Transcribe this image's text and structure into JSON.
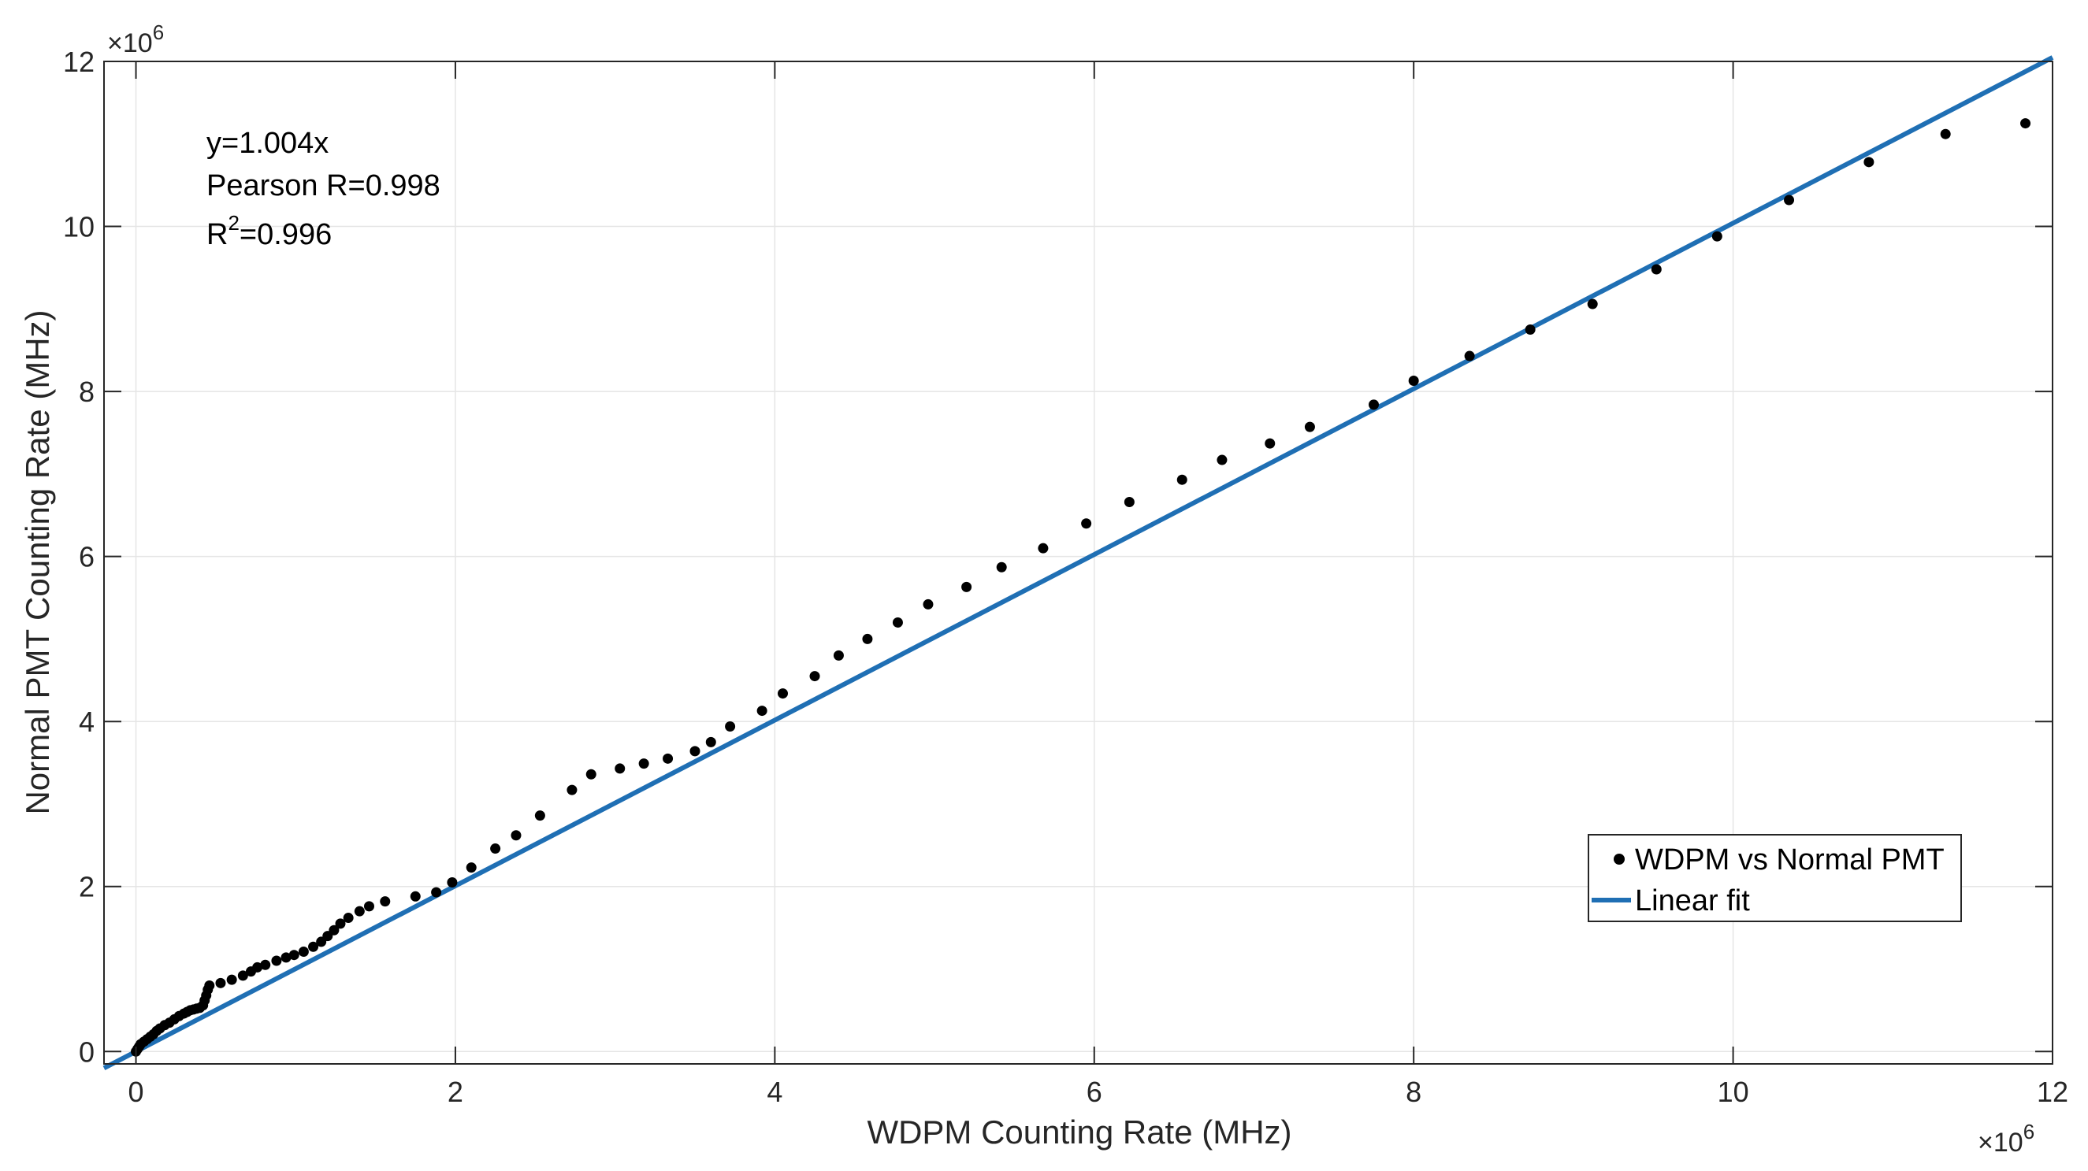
{
  "chart_data": {
    "type": "scatter",
    "xlabel": "WDPM Counting Rate (MHz)",
    "ylabel": "Normal PMT Counting Rate (MHz)",
    "xlim": [
      -0.2,
      12
    ],
    "ylim": [
      -0.15,
      12
    ],
    "x_ticks": [
      0,
      2,
      4,
      6,
      8,
      10,
      12
    ],
    "y_ticks": [
      0,
      2,
      4,
      6,
      8,
      10,
      12
    ],
    "x_tick_labels": [
      "0",
      "2",
      "4",
      "6",
      "8",
      "10",
      "12"
    ],
    "y_tick_labels": [
      "0",
      "2",
      "4",
      "6",
      "8",
      "10",
      "12"
    ],
    "x_multiplier": {
      "base": "×10",
      "exp": "6"
    },
    "y_multiplier": {
      "base": "×10",
      "exp": "6"
    },
    "grid": true,
    "annotations": {
      "equation": "y=1.004x",
      "pearson": "Pearson R=0.998",
      "r2_prefix": "R",
      "r2_exp": "2",
      "r2_value": "=0.996"
    },
    "legend": {
      "placement": "bottom-right",
      "entries": [
        "WDPM vs Normal PMT",
        "Linear fit"
      ]
    },
    "colors": {
      "points": "#000000",
      "fit": "#1f6fb4",
      "grid": "#e5e5e5",
      "axes": "#262626"
    },
    "series": [
      {
        "name": "WDPM vs Normal PMT",
        "kind": "scatter",
        "x": [
          0.0,
          0.01,
          0.02,
          0.03,
          0.05,
          0.07,
          0.09,
          0.11,
          0.13,
          0.15,
          0.18,
          0.21,
          0.24,
          0.27,
          0.3,
          0.32,
          0.34,
          0.36,
          0.38,
          0.4,
          0.42,
          0.43,
          0.44,
          0.45,
          0.46,
          0.53,
          0.6,
          0.67,
          0.72,
          0.76,
          0.81,
          0.88,
          0.94,
          0.99,
          1.05,
          1.11,
          1.16,
          1.2,
          1.24,
          1.28,
          1.33,
          1.4,
          1.46,
          1.56,
          1.75,
          1.88,
          1.98,
          2.1,
          2.25,
          2.38,
          2.53,
          2.73,
          2.85,
          3.03,
          3.18,
          3.33,
          3.5,
          3.6,
          3.72,
          3.92,
          4.05,
          4.25,
          4.4,
          4.58,
          4.77,
          4.96,
          5.2,
          5.42,
          5.68,
          5.95,
          6.22,
          6.55,
          6.8,
          7.1,
          7.35,
          7.75,
          8.0,
          8.35,
          8.73,
          9.12,
          9.52,
          9.9,
          10.35,
          10.85,
          11.33,
          11.83
        ],
        "y": [
          0.0,
          0.03,
          0.06,
          0.09,
          0.12,
          0.15,
          0.18,
          0.21,
          0.25,
          0.28,
          0.32,
          0.35,
          0.39,
          0.43,
          0.46,
          0.48,
          0.5,
          0.51,
          0.52,
          0.53,
          0.56,
          0.62,
          0.68,
          0.75,
          0.8,
          0.83,
          0.87,
          0.92,
          0.97,
          1.02,
          1.05,
          1.1,
          1.14,
          1.17,
          1.21,
          1.27,
          1.33,
          1.4,
          1.47,
          1.55,
          1.62,
          1.7,
          1.76,
          1.82,
          1.88,
          1.93,
          2.05,
          2.23,
          2.46,
          2.62,
          2.86,
          3.17,
          3.36,
          3.43,
          3.49,
          3.55,
          3.64,
          3.75,
          3.94,
          4.13,
          4.34,
          4.55,
          4.8,
          5.0,
          5.2,
          5.42,
          5.63,
          5.87,
          6.1,
          6.4,
          6.66,
          6.93,
          7.17,
          7.37,
          7.57,
          7.84,
          8.13,
          8.43,
          8.75,
          9.06,
          9.48,
          9.88,
          10.32,
          10.78,
          11.12,
          11.25
        ]
      },
      {
        "name": "Linear fit",
        "kind": "line",
        "slope": 1.004,
        "x": [
          -0.2,
          12
        ]
      }
    ]
  }
}
